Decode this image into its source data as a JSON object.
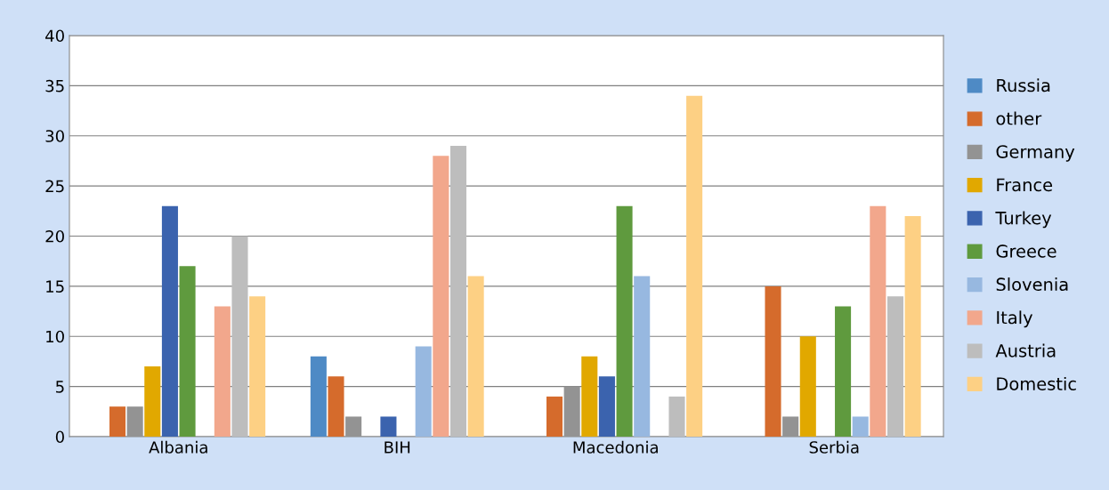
{
  "chart_data": {
    "type": "bar",
    "categories": [
      "Albania",
      "BIH",
      "Macedonia",
      "Serbia"
    ],
    "series": [
      {
        "name": "Russia",
        "color": "#4e8ac5",
        "values": [
          0,
          8,
          0,
          0
        ]
      },
      {
        "name": "other",
        "color": "#d56b2c",
        "values": [
          3,
          6,
          4,
          15
        ]
      },
      {
        "name": "Germany",
        "color": "#939393",
        "values": [
          3,
          2,
          5,
          2
        ]
      },
      {
        "name": "France",
        "color": "#e1a800",
        "values": [
          7,
          0,
          8,
          10
        ]
      },
      {
        "name": "Turkey",
        "color": "#3b63ae",
        "values": [
          23,
          2,
          6,
          0
        ]
      },
      {
        "name": "Greece",
        "color": "#5f9a3e",
        "values": [
          17,
          0,
          23,
          13
        ]
      },
      {
        "name": "Slovenia",
        "color": "#97b8e0",
        "values": [
          0,
          9,
          16,
          2
        ]
      },
      {
        "name": "Italy",
        "color": "#f2a78c",
        "values": [
          13,
          28,
          0,
          23
        ]
      },
      {
        "name": "Austria",
        "color": "#bdbdbd",
        "values": [
          20,
          29,
          4,
          14
        ]
      },
      {
        "name": "Domestic",
        "color": "#fdd084",
        "values": [
          14,
          16,
          34,
          22
        ]
      }
    ],
    "ylim": [
      0,
      40
    ],
    "yticks": [
      0,
      5,
      10,
      15,
      20,
      25,
      30,
      35,
      40
    ],
    "grid": "y",
    "legend": "right"
  }
}
